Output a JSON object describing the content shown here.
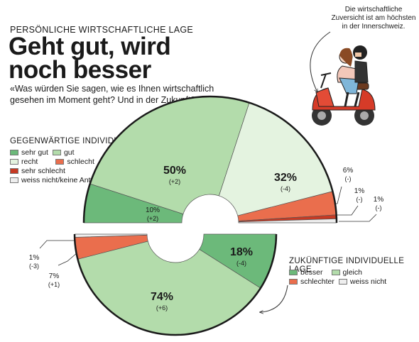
{
  "header": {
    "kicker": "PERSÖNLICHE WIRTSCHAFTLICHE LAGE",
    "title_line1": "Geht gut, wird",
    "title_line2": "noch besser",
    "subtitle": "«Was würden Sie sagen, wie es Ihnen wirtschaftlich gesehen im Moment geht? Und in der Zukunft?»"
  },
  "illustration": {
    "note": "Die wirtschaftliche Zuversicht ist am höchsten in der Innerschweiz.",
    "icon": "couple-on-red-scooter"
  },
  "colors": {
    "sehr_gut": "#6cb97a",
    "gut": "#b3dcab",
    "recht": "#e4f3e0",
    "schlecht": "#ea6e4d",
    "sehr_schlecht": "#c63a24",
    "weiss_nicht": "#eeeeee"
  },
  "chart_data": [
    {
      "type": "pie",
      "title": "GEGENWÄRTIGE INDIVIDUELLE LAGE",
      "legend": [
        "sehr gut",
        "gut",
        "recht",
        "schlecht",
        "sehr schlecht",
        "weiss nicht/keine Antwort"
      ],
      "slices": [
        {
          "name": "sehr gut",
          "value": 10,
          "label": "10%",
          "change": "(+2)",
          "color": "#6cb97a"
        },
        {
          "name": "gut",
          "value": 50,
          "label": "50%",
          "change": "(+2)",
          "color": "#b3dcab"
        },
        {
          "name": "recht",
          "value": 32,
          "label": "32%",
          "change": "(-4)",
          "color": "#e4f3e0"
        },
        {
          "name": "schlecht",
          "value": 6,
          "label": "6%",
          "change": "(-)",
          "color": "#ea6e4d"
        },
        {
          "name": "sehr schlecht",
          "value": 1,
          "label": "1%",
          "change": "(-)",
          "color": "#c63a24"
        },
        {
          "name": "weiss nicht/keine Antwort",
          "value": 1,
          "label": "1%",
          "change": "(-)",
          "color": "#eeeeee"
        }
      ]
    },
    {
      "type": "pie",
      "title": "ZUKÜNFTIGE INDIVIDUELLE LAGE",
      "legend": [
        "besser",
        "gleich",
        "schlechter",
        "weiss nicht"
      ],
      "slices": [
        {
          "name": "besser",
          "value": 18,
          "label": "18%",
          "change": "(-4)",
          "color": "#6cb97a"
        },
        {
          "name": "gleich",
          "value": 74,
          "label": "74%",
          "change": "(+6)",
          "color": "#b3dcab"
        },
        {
          "name": "schlechter",
          "value": 7,
          "label": "7%",
          "change": "(+1)",
          "color": "#ea6e4d"
        },
        {
          "name": "weiss nicht",
          "value": 1,
          "label": "1%",
          "change": "(-3)",
          "color": "#eeeeee"
        }
      ]
    }
  ]
}
